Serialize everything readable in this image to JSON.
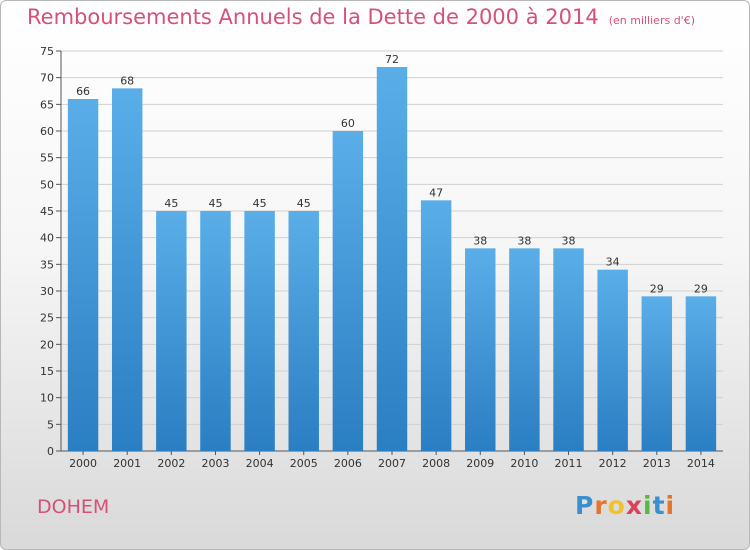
{
  "chart_data": {
    "type": "bar",
    "title": "Remboursements Annuels de la Dette de 2000 à 2014",
    "subtitle": "(en milliers d'€)",
    "categories": [
      "2000",
      "2001",
      "2002",
      "2003",
      "2004",
      "2005",
      "2006",
      "2007",
      "2008",
      "2009",
      "2010",
      "2011",
      "2012",
      "2013",
      "2014"
    ],
    "values": [
      66,
      68,
      45,
      45,
      45,
      45,
      60,
      72,
      47,
      38,
      38,
      38,
      34,
      29,
      29
    ],
    "ylim": [
      0,
      75
    ],
    "yticks": [
      0,
      5,
      10,
      15,
      20,
      25,
      30,
      35,
      40,
      45,
      50,
      55,
      60,
      65,
      70,
      75
    ],
    "grid": true,
    "xlabel": "",
    "ylabel": "",
    "bar_color_top": "#5aaee8",
    "bar_color_bottom": "#2a7ec2"
  },
  "commune": "DOHEM",
  "logo": {
    "letters": [
      "P",
      "r",
      "o",
      "x",
      "i",
      "t",
      "i"
    ],
    "colors": [
      "#3a8fd0",
      "#e8732a",
      "#f2c12e",
      "#d9435a",
      "#56b947",
      "#3a8fd0",
      "#e8732a"
    ]
  },
  "colors": {
    "title": "#d65077",
    "grid": "#d0d0d0"
  }
}
